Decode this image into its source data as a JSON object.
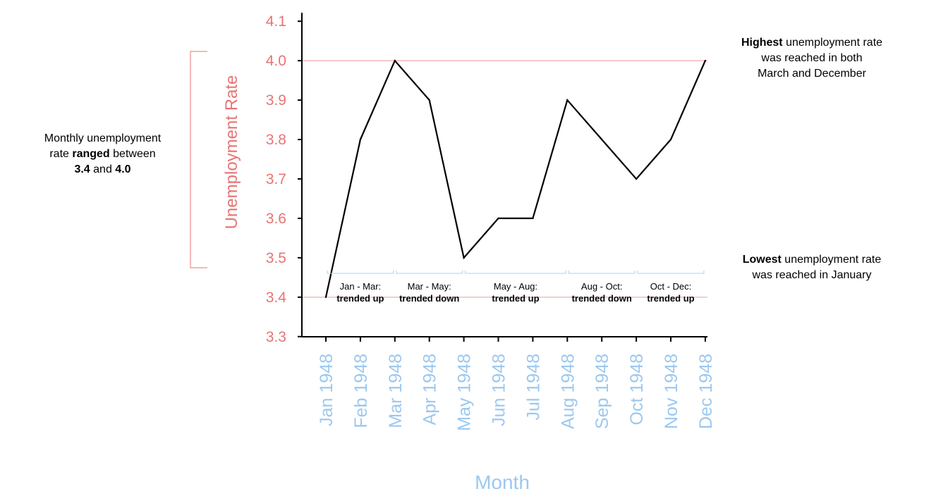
{
  "chart_data": {
    "type": "line",
    "xlabel": "Month",
    "ylabel": "Unemployment Rate",
    "categories": [
      "Jan 1948",
      "Feb 1948",
      "Mar 1948",
      "Apr 1948",
      "May 1948",
      "Jun 1948",
      "Jul 1948",
      "Aug 1948",
      "Sep 1948",
      "Oct 1948",
      "Nov 1948",
      "Dec 1948"
    ],
    "values": [
      3.4,
      3.8,
      4.0,
      3.9,
      3.5,
      3.6,
      3.6,
      3.9,
      3.8,
      3.7,
      3.8,
      4.0
    ],
    "ylim": [
      3.2,
      4.15
    ],
    "yticks": [
      "3.3",
      "3.4",
      "3.5",
      "3.6",
      "3.7",
      "3.8",
      "3.9",
      "4.0",
      "4.1"
    ],
    "grid": false,
    "reference_lines": [
      4.0,
      3.4
    ],
    "colors": {
      "line": "#000000",
      "y_axis_text": "#e87474",
      "x_axis_text": "#9cc8ef",
      "reference": "#f2a9a9",
      "bracket": "#f0a0a0",
      "segment_bracket": "#a9d3f5"
    },
    "trend_segments": [
      {
        "from": 0,
        "to": 2,
        "period": "Jan - Mar:",
        "trend": "trended up"
      },
      {
        "from": 2,
        "to": 4,
        "period": "Mar - May:",
        "trend": "trended down"
      },
      {
        "from": 4,
        "to": 7,
        "period": "May - Aug:",
        "trend": "trended up"
      },
      {
        "from": 7,
        "to": 9,
        "period": "Aug - Oct:",
        "trend": "trended down"
      },
      {
        "from": 9,
        "to": 11,
        "period": "Oct - Dec:",
        "trend": "trended up"
      }
    ]
  },
  "annotations": {
    "range": {
      "line1": "Monthly unemployment",
      "pre": "rate ",
      "bold": "ranged",
      "post": " between",
      "min": "3.4",
      "and": " and ",
      "max": "4.0"
    },
    "highest": {
      "bold": "Highest",
      "line1_rest": " unemployment rate",
      "line2": "was reached in both",
      "line3": "March and December"
    },
    "lowest": {
      "bold": "Lowest",
      "line1_rest": " unemployment rate",
      "line2": "was reached in January"
    }
  }
}
